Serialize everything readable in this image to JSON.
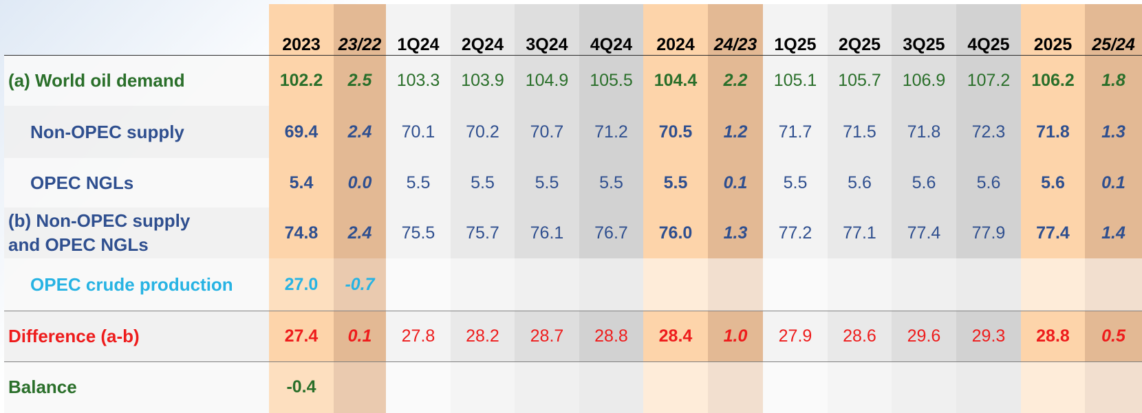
{
  "columns": [
    {
      "label": "2023",
      "type": "year"
    },
    {
      "label": "23/22",
      "type": "change"
    },
    {
      "label": "1Q24",
      "type": "quarter"
    },
    {
      "label": "2Q24",
      "type": "quarter"
    },
    {
      "label": "3Q24",
      "type": "quarter"
    },
    {
      "label": "4Q24",
      "type": "quarter"
    },
    {
      "label": "2024",
      "type": "year"
    },
    {
      "label": "24/23",
      "type": "change"
    },
    {
      "label": "1Q25",
      "type": "quarter"
    },
    {
      "label": "2Q25",
      "type": "quarter"
    },
    {
      "label": "3Q25",
      "type": "quarter"
    },
    {
      "label": "4Q25",
      "type": "quarter"
    },
    {
      "label": "2025",
      "type": "year"
    },
    {
      "label": "25/24",
      "type": "change"
    }
  ],
  "rows": [
    {
      "label": "(a) World oil demand",
      "color": "#2a6f2a",
      "values": [
        "102.2",
        "2.5",
        "103.3",
        "103.9",
        "104.9",
        "105.5",
        "104.4",
        "2.2",
        "105.1",
        "105.7",
        "106.9",
        "107.2",
        "106.2",
        "1.8"
      ]
    },
    {
      "label": "Non-OPEC  supply",
      "color": "#2f4f8f",
      "values": [
        "69.4",
        "2.4",
        "70.1",
        "70.2",
        "70.7",
        "71.2",
        "70.5",
        "1.2",
        "71.7",
        "71.5",
        "71.8",
        "72.3",
        "71.8",
        "1.3"
      ]
    },
    {
      "label": "OPEC NGLs",
      "color": "#2f4f8f",
      "values": [
        "5.4",
        "0.0",
        "5.5",
        "5.5",
        "5.5",
        "5.5",
        "5.5",
        "0.1",
        "5.5",
        "5.6",
        "5.6",
        "5.6",
        "5.6",
        "0.1"
      ]
    },
    {
      "label_line1": "(b) Non-OPEC supply",
      "label_line2": "and OPEC NGLs",
      "color": "#2f4f8f",
      "values": [
        "74.8",
        "2.4",
        "75.5",
        "75.7",
        "76.1",
        "76.7",
        "76.0",
        "1.3",
        "77.2",
        "77.1",
        "77.4",
        "77.9",
        "77.4",
        "1.4"
      ]
    },
    {
      "label": "OPEC crude production",
      "color": "#27b3e3",
      "values": [
        "27.0",
        "-0.7",
        "",
        "",
        "",
        "",
        "",
        "",
        "",
        "",
        "",
        "",
        "",
        ""
      ]
    },
    {
      "label": "Difference (a-b)",
      "color": "#ee1c1c",
      "values": [
        "27.4",
        "0.1",
        "27.8",
        "28.2",
        "28.7",
        "28.8",
        "28.4",
        "1.0",
        "27.9",
        "28.6",
        "29.6",
        "29.3",
        "28.8",
        "0.5"
      ]
    },
    {
      "label": "Balance",
      "color": "#2a6f2a",
      "values": [
        "-0.4",
        "",
        "",
        "",
        "",
        "",
        "",
        "",
        "",
        "",
        "",
        "",
        "",
        ""
      ]
    }
  ],
  "column_colors": {
    "year": "#fdd4aa",
    "change": "#e3b994",
    "quarter_1": "#f3f3f3",
    "quarter_2": "#e9e9e9",
    "quarter_3": "#dedede",
    "quarter_4": "#d2d2d2"
  }
}
